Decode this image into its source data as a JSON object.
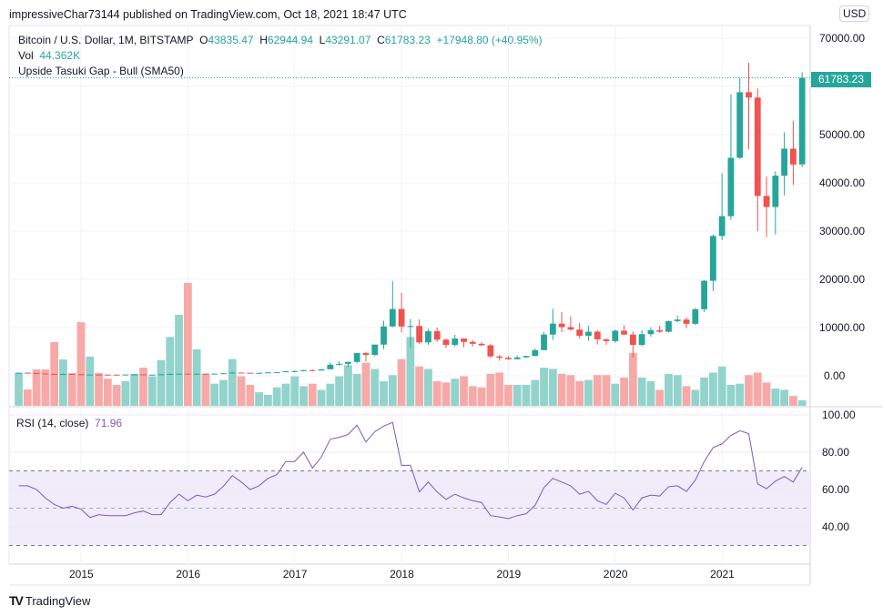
{
  "publisher_line": "impressiveChar73144 published on TradingView.com, Oct 18, 2021 18:47 UTC",
  "legend": {
    "symbol": "Bitcoin / U.S. Dollar, 1M, BITSTAMP",
    "o_label": "O",
    "o": "43835.47",
    "h_label": "H",
    "h": "62944.94",
    "l_label": "L",
    "l": "43291.07",
    "c_label": "C",
    "c": "61783.23",
    "change": "+17948.80 (+40.95%)",
    "vol_label": "Vol",
    "vol": "44.362K",
    "pattern": "Upside Tasuki Gap - Bull (SMA50)"
  },
  "rsi_legend": {
    "label": "RSI (14, close)",
    "value": "71.96"
  },
  "currency_badge": "USD",
  "last_price_label": "61783.23",
  "brand": "TradingView",
  "colors": {
    "up": "#26a69a",
    "down": "#ef5350",
    "up_vol": "#92d3cc",
    "down_vol": "#f7a9a7",
    "rsi": "#7e57c2",
    "rsi_band": "#f0ecf9"
  },
  "chart_data": [
    {
      "type": "candlestick",
      "title": "Bitcoin / U.S. Dollar, 1M, BITSTAMP",
      "start_month": "2014-06",
      "x_ticks": [
        "2015",
        "2016",
        "2017",
        "2018",
        "2019",
        "2020",
        "2021"
      ],
      "y_ticks": [
        "70000.00",
        "50000.00",
        "40000.00",
        "30000.00",
        "20000.00",
        "10000.00",
        "0.00"
      ],
      "y_tick_values": [
        70000,
        50000,
        40000,
        30000,
        20000,
        10000,
        0
      ],
      "ylim": [
        -6000,
        70500
      ],
      "ohlc": [
        [
          627,
          680,
          525,
          640
        ],
        [
          640,
          660,
          565,
          580
        ],
        [
          580,
          600,
          440,
          478
        ],
        [
          478,
          500,
          370,
          386
        ],
        [
          386,
          415,
          275,
          338
        ],
        [
          338,
          460,
          325,
          378
        ],
        [
          378,
          385,
          310,
          320
        ],
        [
          320,
          325,
          152,
          217
        ],
        [
          217,
          265,
          210,
          254
        ],
        [
          254,
          300,
          240,
          244
        ],
        [
          244,
          260,
          215,
          236
        ],
        [
          236,
          250,
          225,
          230
        ],
        [
          230,
          270,
          220,
          263
        ],
        [
          263,
          315,
          255,
          284
        ],
        [
          284,
          290,
          195,
          230
        ],
        [
          230,
          245,
          225,
          236
        ],
        [
          236,
          335,
          235,
          314
        ],
        [
          314,
          495,
          300,
          377
        ],
        [
          377,
          470,
          350,
          430
        ],
        [
          430,
          465,
          350,
          368
        ],
        [
          368,
          445,
          365,
          437
        ],
        [
          437,
          440,
          400,
          416
        ],
        [
          416,
          470,
          410,
          448
        ],
        [
          448,
          550,
          435,
          531
        ],
        [
          531,
          780,
          520,
          673
        ],
        [
          673,
          700,
          580,
          624
        ],
        [
          624,
          625,
          470,
          573
        ],
        [
          573,
          630,
          570,
          608
        ],
        [
          608,
          715,
          605,
          700
        ],
        [
          700,
          755,
          680,
          742
        ],
        [
          742,
          975,
          740,
          964
        ],
        [
          964,
          1160,
          750,
          970
        ],
        [
          970,
          1210,
          915,
          1190
        ],
        [
          1190,
          1300,
          890,
          1080
        ],
        [
          1080,
          1350,
          1060,
          1348
        ],
        [
          1348,
          2790,
          1345,
          2300
        ],
        [
          2300,
          3000,
          2120,
          2480
        ],
        [
          2480,
          2920,
          1810,
          2875
        ],
        [
          2875,
          4760,
          2670,
          4703
        ],
        [
          4703,
          4980,
          2970,
          4338
        ],
        [
          4338,
          6470,
          4110,
          6468
        ],
        [
          6468,
          11400,
          5500,
          10233
        ],
        [
          10233,
          19666,
          10100,
          13850
        ],
        [
          13850,
          17180,
          9000,
          10221
        ],
        [
          10221,
          11780,
          5920,
          10326
        ],
        [
          10326,
          11700,
          6600,
          6926
        ],
        [
          6926,
          9760,
          6430,
          9246
        ],
        [
          9246,
          9990,
          7030,
          7495
        ],
        [
          7495,
          7770,
          5750,
          6390
        ],
        [
          6390,
          8500,
          6070,
          7729
        ],
        [
          7729,
          7750,
          5880,
          7033
        ],
        [
          7033,
          7400,
          6100,
          6626
        ],
        [
          6626,
          7000,
          6200,
          6318
        ],
        [
          6318,
          6600,
          3650,
          4017
        ],
        [
          4017,
          4300,
          3130,
          3742
        ],
        [
          3742,
          4090,
          3340,
          3437
        ],
        [
          3437,
          4200,
          3380,
          3814
        ],
        [
          3814,
          4140,
          3690,
          4103
        ],
        [
          4103,
          5640,
          4080,
          5320
        ],
        [
          5320,
          9090,
          5320,
          8555
        ],
        [
          8555,
          13880,
          7450,
          10817
        ],
        [
          10817,
          13200,
          9070,
          10085
        ],
        [
          10085,
          12320,
          9350,
          9590
        ],
        [
          9590,
          10940,
          7730,
          8294
        ],
        [
          8294,
          10370,
          7300,
          9150
        ],
        [
          9150,
          9510,
          6520,
          7550
        ],
        [
          7550,
          7760,
          6410,
          7193
        ],
        [
          7193,
          9580,
          6850,
          9350
        ],
        [
          9350,
          10500,
          8440,
          8543
        ],
        [
          8543,
          9190,
          3850,
          6410
        ],
        [
          6410,
          9480,
          6150,
          8629
        ],
        [
          8629,
          10070,
          8100,
          9455
        ],
        [
          9455,
          10380,
          8900,
          9135
        ],
        [
          9135,
          11450,
          8980,
          11333
        ],
        [
          11333,
          12480,
          11120,
          11655
        ],
        [
          11655,
          12080,
          9880,
          10776
        ],
        [
          10776,
          14100,
          10540,
          13797
        ],
        [
          13797,
          19880,
          13200,
          19700
        ],
        [
          19700,
          29300,
          17580,
          28990
        ],
        [
          28990,
          41950,
          28130,
          33100
        ],
        [
          33100,
          58350,
          32300,
          45200
        ],
        [
          45200,
          61800,
          45000,
          58800
        ],
        [
          58800,
          64900,
          47000,
          57700
        ],
        [
          57700,
          59600,
          30000,
          37300
        ],
        [
          37300,
          41300,
          28800,
          35000
        ],
        [
          35000,
          42400,
          29300,
          41500
        ],
        [
          41500,
          50500,
          37400,
          47100
        ],
        [
          47100,
          52900,
          39600,
          43800
        ],
        [
          43835.47,
          62944.94,
          43291.07,
          61783.23
        ]
      ],
      "volume_k": [
        266,
        133,
        296,
        296,
        518,
        377,
        266,
        680,
        400,
        266,
        220,
        170,
        200,
        260,
        310,
        240,
        370,
        560,
        740,
        1000,
        460,
        260,
        180,
        210,
        380,
        240,
        170,
        110,
        90,
        150,
        180,
        240,
        160,
        180,
        130,
        180,
        240,
        330,
        260,
        350,
        300,
        200,
        250,
        380,
        560,
        320,
        300,
        200,
        190,
        220,
        240,
        160,
        150,
        260,
        270,
        170,
        170,
        170,
        210,
        310,
        300,
        260,
        250,
        200,
        210,
        250,
        250,
        180,
        230,
        430,
        230,
        200,
        130,
        260,
        250,
        160,
        130,
        230,
        270,
        320,
        170,
        180,
        250,
        270,
        190,
        140,
        130,
        80,
        44.362
      ],
      "last_price": 61783.23
    },
    {
      "type": "line",
      "title": "RSI (14, close)",
      "y_ticks": [
        "100.00",
        "80.00",
        "60.00",
        "40.00"
      ],
      "y_tick_values": [
        100,
        80,
        60,
        40
      ],
      "bands": {
        "upper": 70,
        "middle": 50,
        "lower": 30
      },
      "values": [
        62,
        62,
        60,
        55.5,
        52,
        50,
        51,
        49.5,
        45,
        46.5,
        46,
        46,
        46,
        47.5,
        48.5,
        46.5,
        46.5,
        53,
        57.5,
        54,
        57,
        56,
        57.5,
        61.8,
        67.5,
        64,
        60,
        62,
        66,
        68,
        75,
        75,
        80,
        71.5,
        77.5,
        87,
        88,
        89.5,
        94.5,
        85.5,
        91,
        94,
        96,
        73,
        73,
        58.7,
        64,
        58.7,
        54.7,
        57.5,
        55.5,
        54,
        53,
        46,
        45.3,
        44.4,
        46,
        47,
        51.5,
        61,
        66,
        64,
        62,
        57.5,
        59,
        54,
        52,
        58,
        55.5,
        49,
        55.5,
        57,
        56.5,
        61.5,
        62,
        59,
        65,
        75,
        82.5,
        84.5,
        89,
        91.5,
        90,
        63,
        60.5,
        64.5,
        67,
        64,
        71.96
      ]
    }
  ]
}
